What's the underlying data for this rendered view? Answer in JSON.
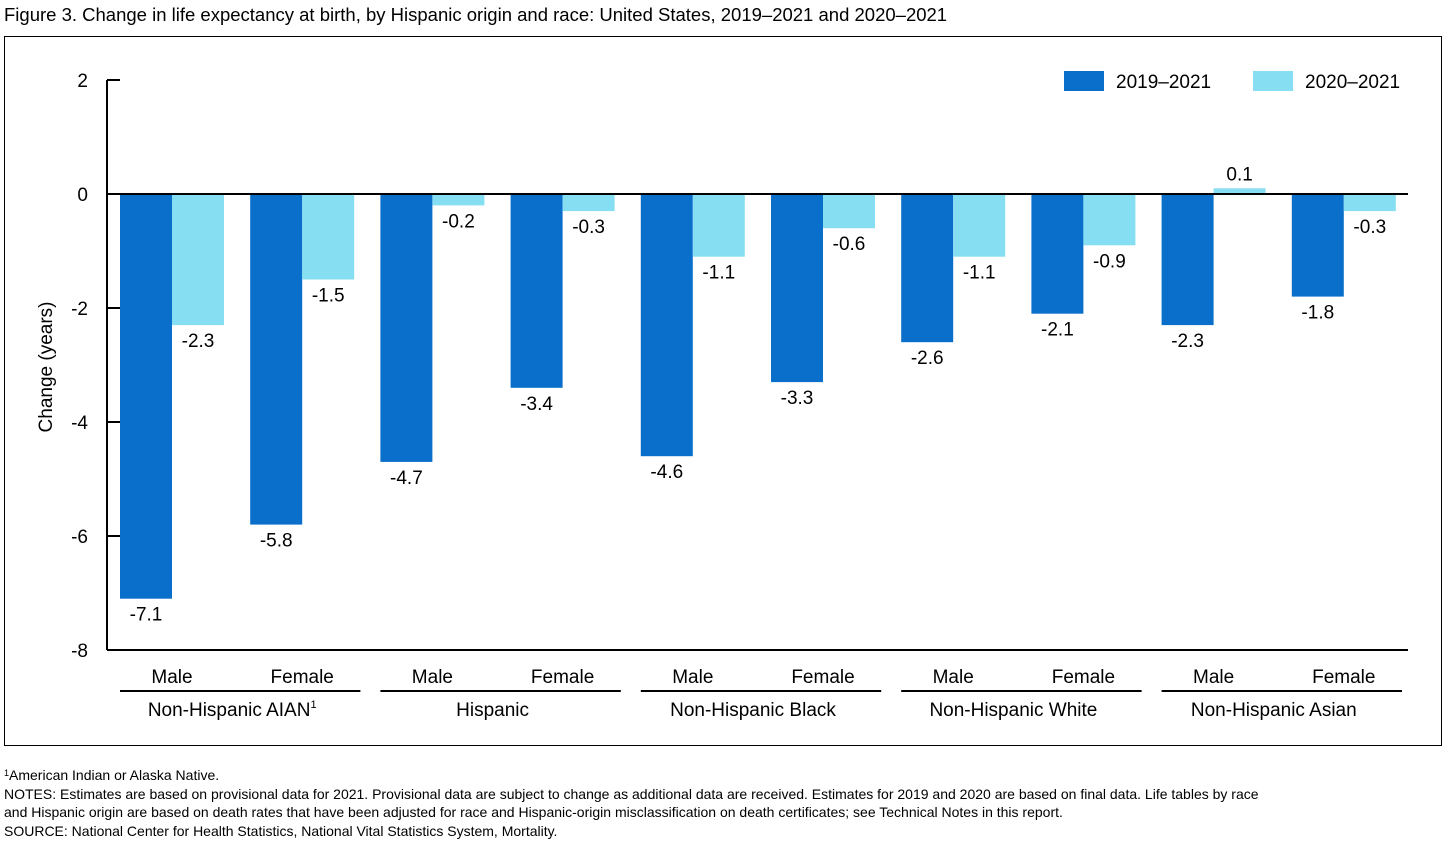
{
  "figure_title": "Figure 3. Change in life expectancy at birth, by Hispanic origin and race: United States, 2019–2021 and  2020–2021",
  "chart_data": {
    "type": "bar",
    "ylabel": "Change (years)",
    "ylim": [
      -8,
      2
    ],
    "yticks": [
      2,
      0,
      -2,
      -4,
      -6,
      -8
    ],
    "grid": false,
    "legend_position": "top-right",
    "groups": [
      {
        "label": "Non-Hispanic AIAN",
        "sup": "1",
        "categories": [
          "Male",
          "Female"
        ]
      },
      {
        "label": "Hispanic",
        "sup": "",
        "categories": [
          "Male",
          "Female"
        ]
      },
      {
        "label": "Non-Hispanic Black",
        "sup": "",
        "categories": [
          "Male",
          "Female"
        ]
      },
      {
        "label": "Non-Hispanic White",
        "sup": "",
        "categories": [
          "Male",
          "Female"
        ]
      },
      {
        "label": "Non-Hispanic Asian",
        "sup": "",
        "categories": [
          "Male",
          "Female"
        ]
      }
    ],
    "series": [
      {
        "name": "2019–2021",
        "color": "#0a6fcb",
        "values": [
          -7.1,
          -5.8,
          -4.7,
          -3.4,
          -4.6,
          -3.3,
          -2.6,
          -2.1,
          -2.3,
          -1.8
        ],
        "labels": [
          "-7.1",
          "-5.8",
          "-4.7",
          "-3.4",
          "-4.6",
          "-3.3",
          "-2.6",
          "-2.1",
          "-2.3",
          "-1.8"
        ]
      },
      {
        "name": "2020–2021",
        "color": "#86def2",
        "values": [
          -2.3,
          -1.5,
          -0.2,
          -0.3,
          -1.1,
          -0.6,
          -1.1,
          -0.9,
          0.1,
          -0.3
        ],
        "labels": [
          "-2.3",
          "-1.5",
          "-0.2",
          "-0.3",
          "-1.1",
          "-0.6",
          "-1.1",
          "-0.9",
          "0.1",
          "-0.3"
        ]
      }
    ]
  },
  "footnotes": {
    "note1_sup": "1",
    "note1_text": "American Indian or Alaska Native.",
    "notes_line1": "NOTES: Estimates are based on provisional data for 2021. Provisional data are subject to change as additional data are received. Estimates for 2019 and 2020 are based on final data. Life tables by race",
    "notes_line2": "and Hispanic origin are based on death rates that have been adjusted for race and Hispanic-origin misclassification on death certificates; see Technical Notes in this report.",
    "source": "SOURCE: National Center for Health Statistics, National Vital Statistics System, Mortality."
  }
}
